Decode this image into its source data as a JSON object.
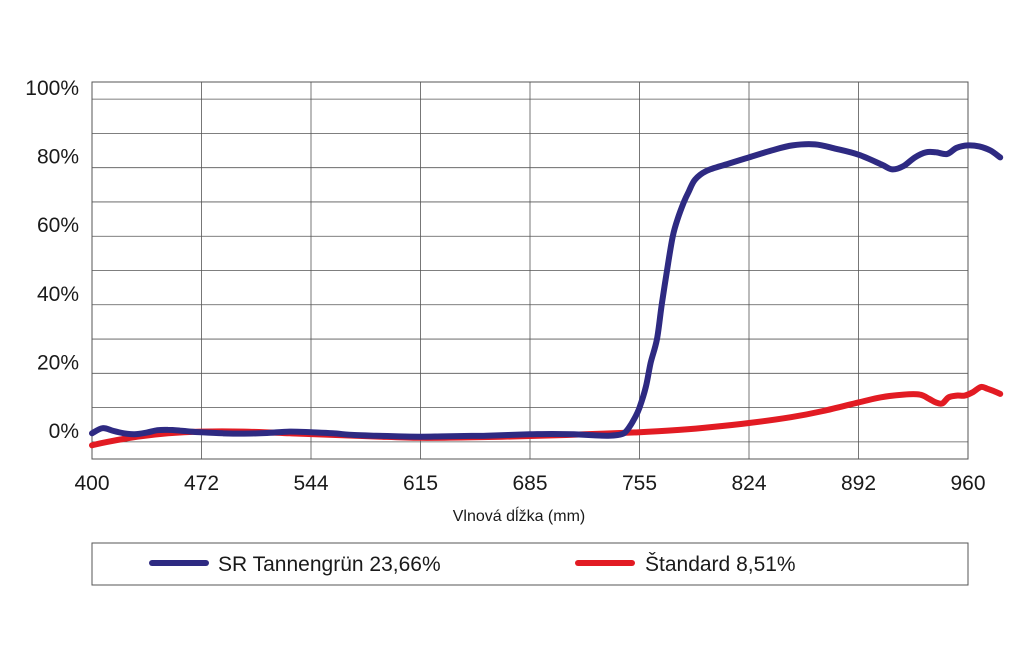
{
  "chart_data": {
    "type": "line",
    "title": "",
    "xlabel": "Vlnová dĺžka (mm)",
    "ylabel": "",
    "x_tick_labels": [
      "400",
      "472",
      "544",
      "615",
      "685",
      "755",
      "824",
      "892",
      "960"
    ],
    "y_tick_labels": [
      "0%",
      "20%",
      "40%",
      "60%",
      "80%",
      "100%"
    ],
    "ylim": [
      -5,
      105
    ],
    "grid": true,
    "legend_position": "bottom",
    "series": [
      {
        "name": "SR Tannengrün 23,66%",
        "color": "#2e2a82",
        "points": [
          [
            400,
            2.5
          ],
          [
            407,
            4
          ],
          [
            414,
            3.2
          ],
          [
            421,
            2.5
          ],
          [
            428,
            2.2
          ],
          [
            436,
            2.7
          ],
          [
            443,
            3.4
          ],
          [
            450,
            3.5
          ],
          [
            458,
            3.3
          ],
          [
            465,
            3
          ],
          [
            472,
            2.8
          ],
          [
            486,
            2.5
          ],
          [
            500,
            2.4
          ],
          [
            515,
            2.6
          ],
          [
            530,
            3
          ],
          [
            544,
            2.8
          ],
          [
            558,
            2.5
          ],
          [
            572,
            2
          ],
          [
            586,
            1.8
          ],
          [
            601,
            1.6
          ],
          [
            615,
            1.5
          ],
          [
            629,
            1.6
          ],
          [
            643,
            1.7
          ],
          [
            657,
            1.8
          ],
          [
            671,
            2
          ],
          [
            685,
            2.2
          ],
          [
            699,
            2.3
          ],
          [
            713,
            2.2
          ],
          [
            727,
            1.9
          ],
          [
            735,
            1.8
          ],
          [
            741,
            2
          ],
          [
            745,
            2.5
          ],
          [
            748,
            4
          ],
          [
            752,
            7
          ],
          [
            755,
            10
          ],
          [
            759,
            16
          ],
          [
            762,
            23
          ],
          [
            766,
            30
          ],
          [
            769,
            40
          ],
          [
            773,
            52
          ],
          [
            776,
            60
          ],
          [
            779,
            65
          ],
          [
            783,
            70
          ],
          [
            786,
            73
          ],
          [
            790,
            76.5
          ],
          [
            797,
            79
          ],
          [
            810,
            81
          ],
          [
            824,
            83
          ],
          [
            838,
            85
          ],
          [
            851,
            86.5
          ],
          [
            865,
            86.8
          ],
          [
            878,
            85.5
          ],
          [
            892,
            83.8
          ],
          [
            906,
            81
          ],
          [
            913,
            79.5
          ],
          [
            920,
            80.5
          ],
          [
            927,
            83
          ],
          [
            934,
            84.5
          ],
          [
            940,
            84.5
          ],
          [
            947,
            84
          ],
          [
            953,
            85.8
          ],
          [
            960,
            86.5
          ],
          [
            967,
            86.2
          ],
          [
            974,
            85
          ],
          [
            980,
            83
          ]
        ]
      },
      {
        "name": "Štandard 8,51%",
        "color": "#e21b23",
        "points": [
          [
            400,
            -1
          ],
          [
            410,
            0
          ],
          [
            430,
            1.5
          ],
          [
            450,
            2.5
          ],
          [
            472,
            3
          ],
          [
            500,
            3
          ],
          [
            530,
            2.5
          ],
          [
            560,
            2
          ],
          [
            590,
            1.5
          ],
          [
            615,
            1.2
          ],
          [
            645,
            1.3
          ],
          [
            685,
            1.7
          ],
          [
            720,
            2.2
          ],
          [
            755,
            2.8
          ],
          [
            780,
            3.5
          ],
          [
            800,
            4.3
          ],
          [
            824,
            5.5
          ],
          [
            850,
            7.2
          ],
          [
            870,
            9
          ],
          [
            892,
            11.5
          ],
          [
            906,
            13
          ],
          [
            920,
            13.8
          ],
          [
            930,
            13.8
          ],
          [
            936,
            12.5
          ],
          [
            940,
            11.5
          ],
          [
            944,
            11.2
          ],
          [
            948,
            13
          ],
          [
            953,
            13.5
          ],
          [
            958,
            13.5
          ],
          [
            963,
            14.5
          ],
          [
            968,
            16
          ],
          [
            972,
            15.5
          ],
          [
            976,
            14.8
          ],
          [
            980,
            14
          ]
        ]
      }
    ]
  }
}
